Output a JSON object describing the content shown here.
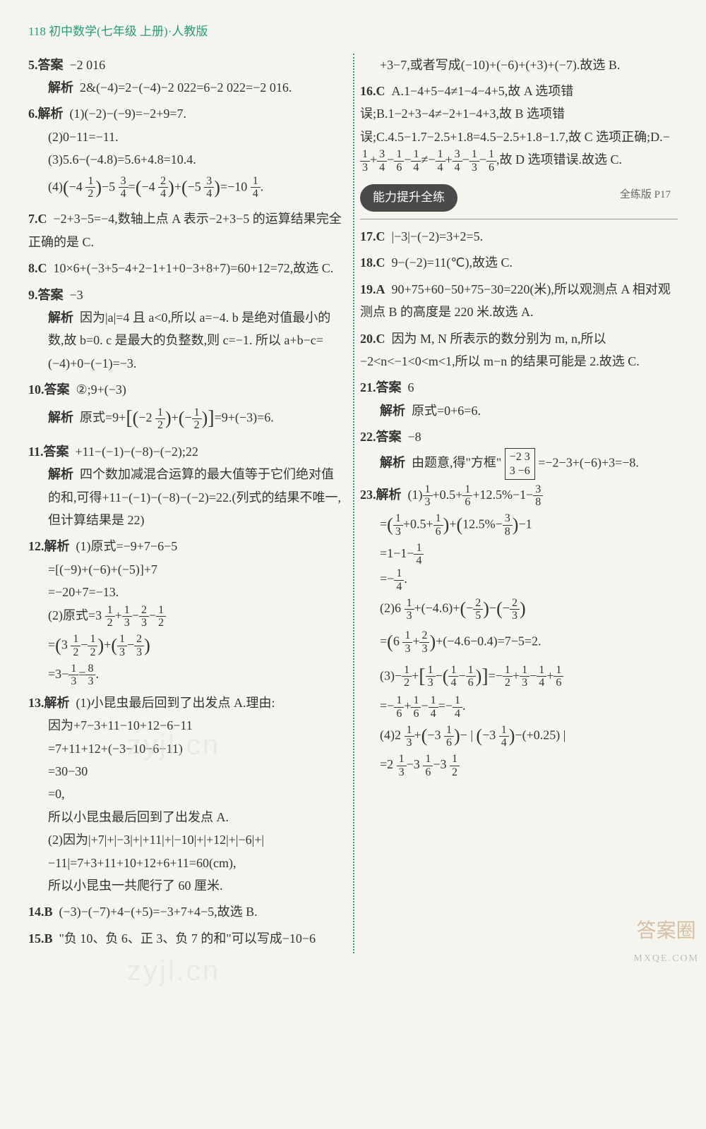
{
  "header": "118 初中数学(七年级 上册)·人教版",
  "left": {
    "p5": {
      "label": "5.答案",
      "answer": "−2 016",
      "explain_label": "解析",
      "explain": "2&(−4)=2−(−4)−2 022=6−2 022=−2 016."
    },
    "p6": {
      "label": "6.解析",
      "s1": "(1)(−2)−(−9)=−2+9=7.",
      "s2": "(2)0−11=−11.",
      "s3": "(3)5.6−(−4.8)=5.6+4.8=10.4.",
      "s4_pre": "(4)",
      "s4_frac1n": "1",
      "s4_frac1d": "2",
      "s4_mid1": "−5",
      "s4_frac2n": "3",
      "s4_frac2d": "4",
      "s4_mid2": "=",
      "s4_frac3n": "2",
      "s4_frac3d": "4",
      "s4_mid3": "+",
      "s4_frac4n": "3",
      "s4_frac4d": "4",
      "s4_end": "=−10",
      "s4_frac5n": "1",
      "s4_frac5d": "4"
    },
    "p7": {
      "label": "7.C",
      "text": "−2+3−5=−4,数轴上点 A 表示−2+3−5 的运算结果完全正确的是 C."
    },
    "p8": {
      "label": "8.C",
      "text": "10×6+(−3+5−4+2−1+1+0−3+8+7)=60+12=72,故选 C."
    },
    "p9": {
      "label": "9.答案",
      "answer": "−3",
      "explain_label": "解析",
      "explain": "因为|a|=4 且 a<0,所以 a=−4. b 是绝对值最小的数,故 b=0. c 是最大的负整数,则 c=−1. 所以 a+b−c=(−4)+0−(−1)=−3."
    },
    "p10": {
      "label": "10.答案",
      "answer": "②;9+(−3)",
      "explain_label": "解析",
      "pre": "原式=9+",
      "f1n": "1",
      "f1d": "2",
      "mid": "+",
      "f2n": "1",
      "f2d": "2",
      "end": "=9+(−3)=6."
    },
    "p11": {
      "label": "11.答案",
      "answer": "+11−(−1)−(−8)−(−2);22",
      "explain_label": "解析",
      "explain": "四个数加减混合运算的最大值等于它们绝对值的和,可得+11−(−1)−(−8)−(−2)=22.(列式的结果不唯一,但计算结果是 22)"
    },
    "p12": {
      "label": "12.解析",
      "s1": "(1)原式=−9+7−6−5",
      "s2": "=[(−9)+(−6)+(−5)]+7",
      "s3": "=−20+7=−13.",
      "s4_pre": "(2)原式=3",
      "f1n": "1",
      "f1d": "2",
      "m1": "+",
      "f2n": "1",
      "f2d": "3",
      "m2": "−",
      "f3n": "2",
      "f3d": "3",
      "m3": "−",
      "f4n": "1",
      "f4d": "2",
      "s5_pre": "=",
      "f5n": "1",
      "f5d": "2",
      "m4": "−",
      "f6n": "1",
      "f6d": "2",
      "m5": "+",
      "f7n": "1",
      "f7d": "3",
      "m6": "−",
      "f8n": "2",
      "f8d": "3",
      "s6_pre": "=3−",
      "f9n": "1",
      "f9d": "3",
      "m7": "=",
      "f10n": "8",
      "f10d": "3"
    },
    "p13": {
      "label": "13.解析",
      "s1": "(1)小昆虫最后回到了出发点 A.理由:",
      "s2": "因为+7−3+11−10+12−6−11",
      "s3": "=7+11+12+(−3−10−6−11)",
      "s4": "=30−30",
      "s5": "=0,",
      "s6": "所以小昆虫最后回到了出发点 A.",
      "s7": "(2)因为|+7|+|−3|+|+11|+|−10|+|+12|+|−6|+|−11|=7+3+11+10+12+6+11=60(cm),",
      "s8": "所以小昆虫一共爬行了 60 厘米."
    },
    "p14": {
      "label": "14.B",
      "text": "(−3)−(−7)+4−(+5)=−3+7+4−5,故选 B."
    },
    "p15": {
      "label": "15.B",
      "text": "\"负 10、负 6、正 3、负 7 的和\"可以写成−10−6"
    }
  },
  "right": {
    "p15cont": "+3−7,或者写成(−10)+(−6)+(+3)+(−7).故选 B.",
    "p16": {
      "label": "16.C",
      "text_a": "A.1−4+5−4≠1−4−4+5,故 A 选项错误;B.1−2+3−4≠−2+1−4+3,故 B 选项错误;C.4.5−1.7−2.5+1.8=4.5−2.5+1.8−1.7,故 C 选项正确;D.−",
      "f1n": "1",
      "f1d": "3",
      "m1": "+",
      "f2n": "3",
      "f2d": "4",
      "m2": "−",
      "f3n": "1",
      "f3d": "6",
      "m3": "−",
      "f4n": "1",
      "f4d": "4",
      "m4": "≠−",
      "f5n": "1",
      "f5d": "4",
      "m5": "+",
      "f6n": "3",
      "f6d": "4",
      "m6": "−",
      "f7n": "1",
      "f7d": "3",
      "m7": "−",
      "f8n": "1",
      "f8d": "6",
      "end": ",故 D 选项错误.故选 C."
    },
    "section": {
      "title": "能力提升全练",
      "ref": "全练版 P17"
    },
    "p17": {
      "label": "17.C",
      "text": "|−3|−(−2)=3+2=5."
    },
    "p18": {
      "label": "18.C",
      "text": "9−(−2)=11(℃),故选 C."
    },
    "p19": {
      "label": "19.A",
      "text": "90+75+60−50+75−30=220(米),所以观测点 A 相对观测点 B 的高度是 220 米.故选 A."
    },
    "p20": {
      "label": "20.C",
      "text": "因为 M, N 所表示的数分别为 m, n,所以−2<n<−1<0<m<1,所以 m−n 的结果可能是 2.故选 C."
    },
    "p21": {
      "label": "21.答案",
      "answer": "6",
      "explain_label": "解析",
      "explain": "原式=0+6=6."
    },
    "p22": {
      "label": "22.答案",
      "answer": "−8",
      "explain_label": "解析",
      "pre": "由题意,得\"方框\"",
      "box_r1": "−2  3",
      "box_r2": " 3  −6",
      "mid": "=−2−3+(−6)+3=−8."
    },
    "p23": {
      "label": "23.解析",
      "s1_pre": "(1)",
      "f1n": "1",
      "f1d": "3",
      "m1": "+0.5+",
      "f2n": "1",
      "f2d": "6",
      "m2": "+12.5%−1−",
      "f3n": "3",
      "f3d": "8",
      "s2_pre": "=",
      "f4n": "1",
      "f4d": "3",
      "m3": "+0.5+",
      "f5n": "1",
      "f5d": "6",
      "m4": "+",
      "m5": "12.5%−",
      "f6n": "3",
      "f6d": "8",
      "m6": "−1",
      "s3_pre": "=1−1−",
      "f7n": "1",
      "f7d": "4",
      "s4_pre": "=−",
      "f8n": "1",
      "f8d": "4",
      "s4_end": ".",
      "s5_pre": "(2)6",
      "f9n": "1",
      "f9d": "3",
      "m7": "+(−4.6)+",
      "f10n": "2",
      "f10d": "5",
      "m8": "−",
      "f11n": "2",
      "f11d": "3",
      "s6_pre": "=",
      "m9": "6",
      "f12n": "1",
      "f12d": "3",
      "m10": "+",
      "f13n": "2",
      "f13d": "3",
      "m11": "+(−4.6−0.4)=7−5=2.",
      "s7_pre": "(3)−",
      "f14n": "1",
      "f14d": "2",
      "m12": "+",
      "f15n": "1",
      "f15d": "3",
      "m13": "−",
      "f16n": "1",
      "f16d": "4",
      "m14": "−",
      "f17n": "1",
      "f17d": "6",
      "m15": "=−",
      "f18n": "1",
      "f18d": "2",
      "m16": "+",
      "f19n": "1",
      "f19d": "3",
      "m17": "−",
      "f20n": "1",
      "f20d": "4",
      "m18": "+",
      "f21n": "1",
      "f21d": "6",
      "s8_pre": "=−",
      "f22n": "1",
      "f22d": "6",
      "m19": "+",
      "f23n": "1",
      "f23d": "6",
      "m20": "−",
      "f24n": "1",
      "f24d": "4",
      "m21": "=−",
      "f25n": "1",
      "f25d": "4",
      "s8_end": ".",
      "s9_pre": "(4)2",
      "f26n": "1",
      "f26d": "3",
      "m22": "+",
      "m23": "−3",
      "f27n": "1",
      "f27d": "6",
      "m24": "−",
      "m25": "−3",
      "f28n": "1",
      "f28d": "4",
      "m26": "−(+0.25)",
      "s10_pre": "=2",
      "f29n": "1",
      "f29d": "3",
      "m27": "−3",
      "f30n": "1",
      "f30d": "6",
      "m28": "−3",
      "f31n": "1",
      "f31d": "2"
    }
  },
  "watermark": "zyjl.cn",
  "corner": {
    "text": "答案圈",
    "url": "MXQE.COM"
  }
}
